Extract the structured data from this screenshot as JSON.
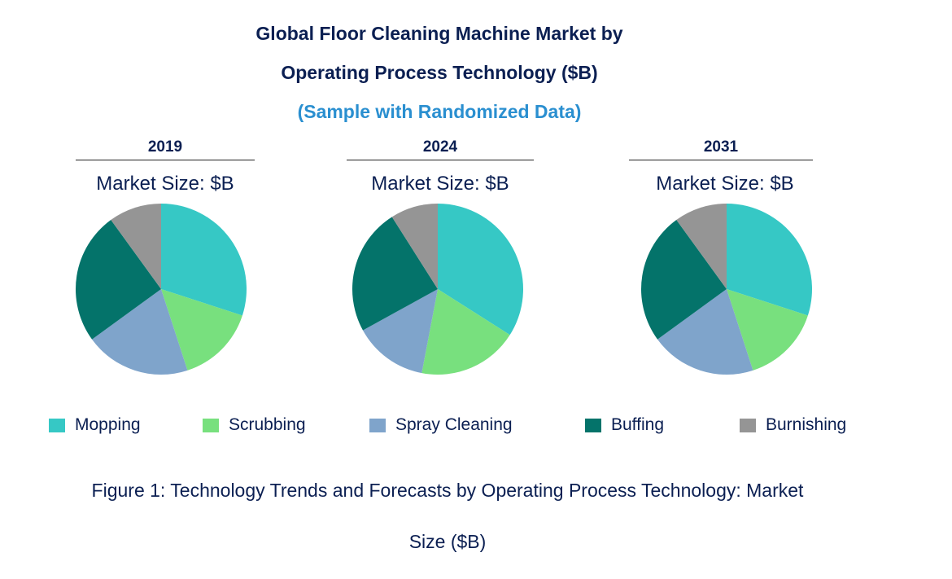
{
  "chart_data": {
    "type": "pie",
    "title_line1": "Global Floor Cleaning Machine Market by",
    "title_line2": "Operating Process Technology ($B)",
    "subtitle": "(Sample with Randomized Data)",
    "series_names": [
      "Mopping",
      "Scrubbing",
      "Spray Cleaning",
      "Buffing",
      "Burnishing"
    ],
    "colors": [
      "#36c8c5",
      "#78e07e",
      "#7fa4cb",
      "#04736a",
      "#959595"
    ],
    "charts": [
      {
        "year": "2019",
        "label": "Market Size: $B",
        "values": [
          30,
          15,
          20,
          25,
          10
        ]
      },
      {
        "year": "2024",
        "label": "Market Size: $B",
        "values": [
          34,
          19,
          14,
          24,
          9
        ]
      },
      {
        "year": "2031",
        "label": "Market Size: $B",
        "values": [
          30,
          15,
          20,
          25,
          10
        ]
      }
    ],
    "legend_position": "bottom"
  },
  "caption": {
    "line1": "Figure 1: Technology Trends and Forecasts by Operating Process Technology: Market",
    "line2": "Size ($B)"
  }
}
